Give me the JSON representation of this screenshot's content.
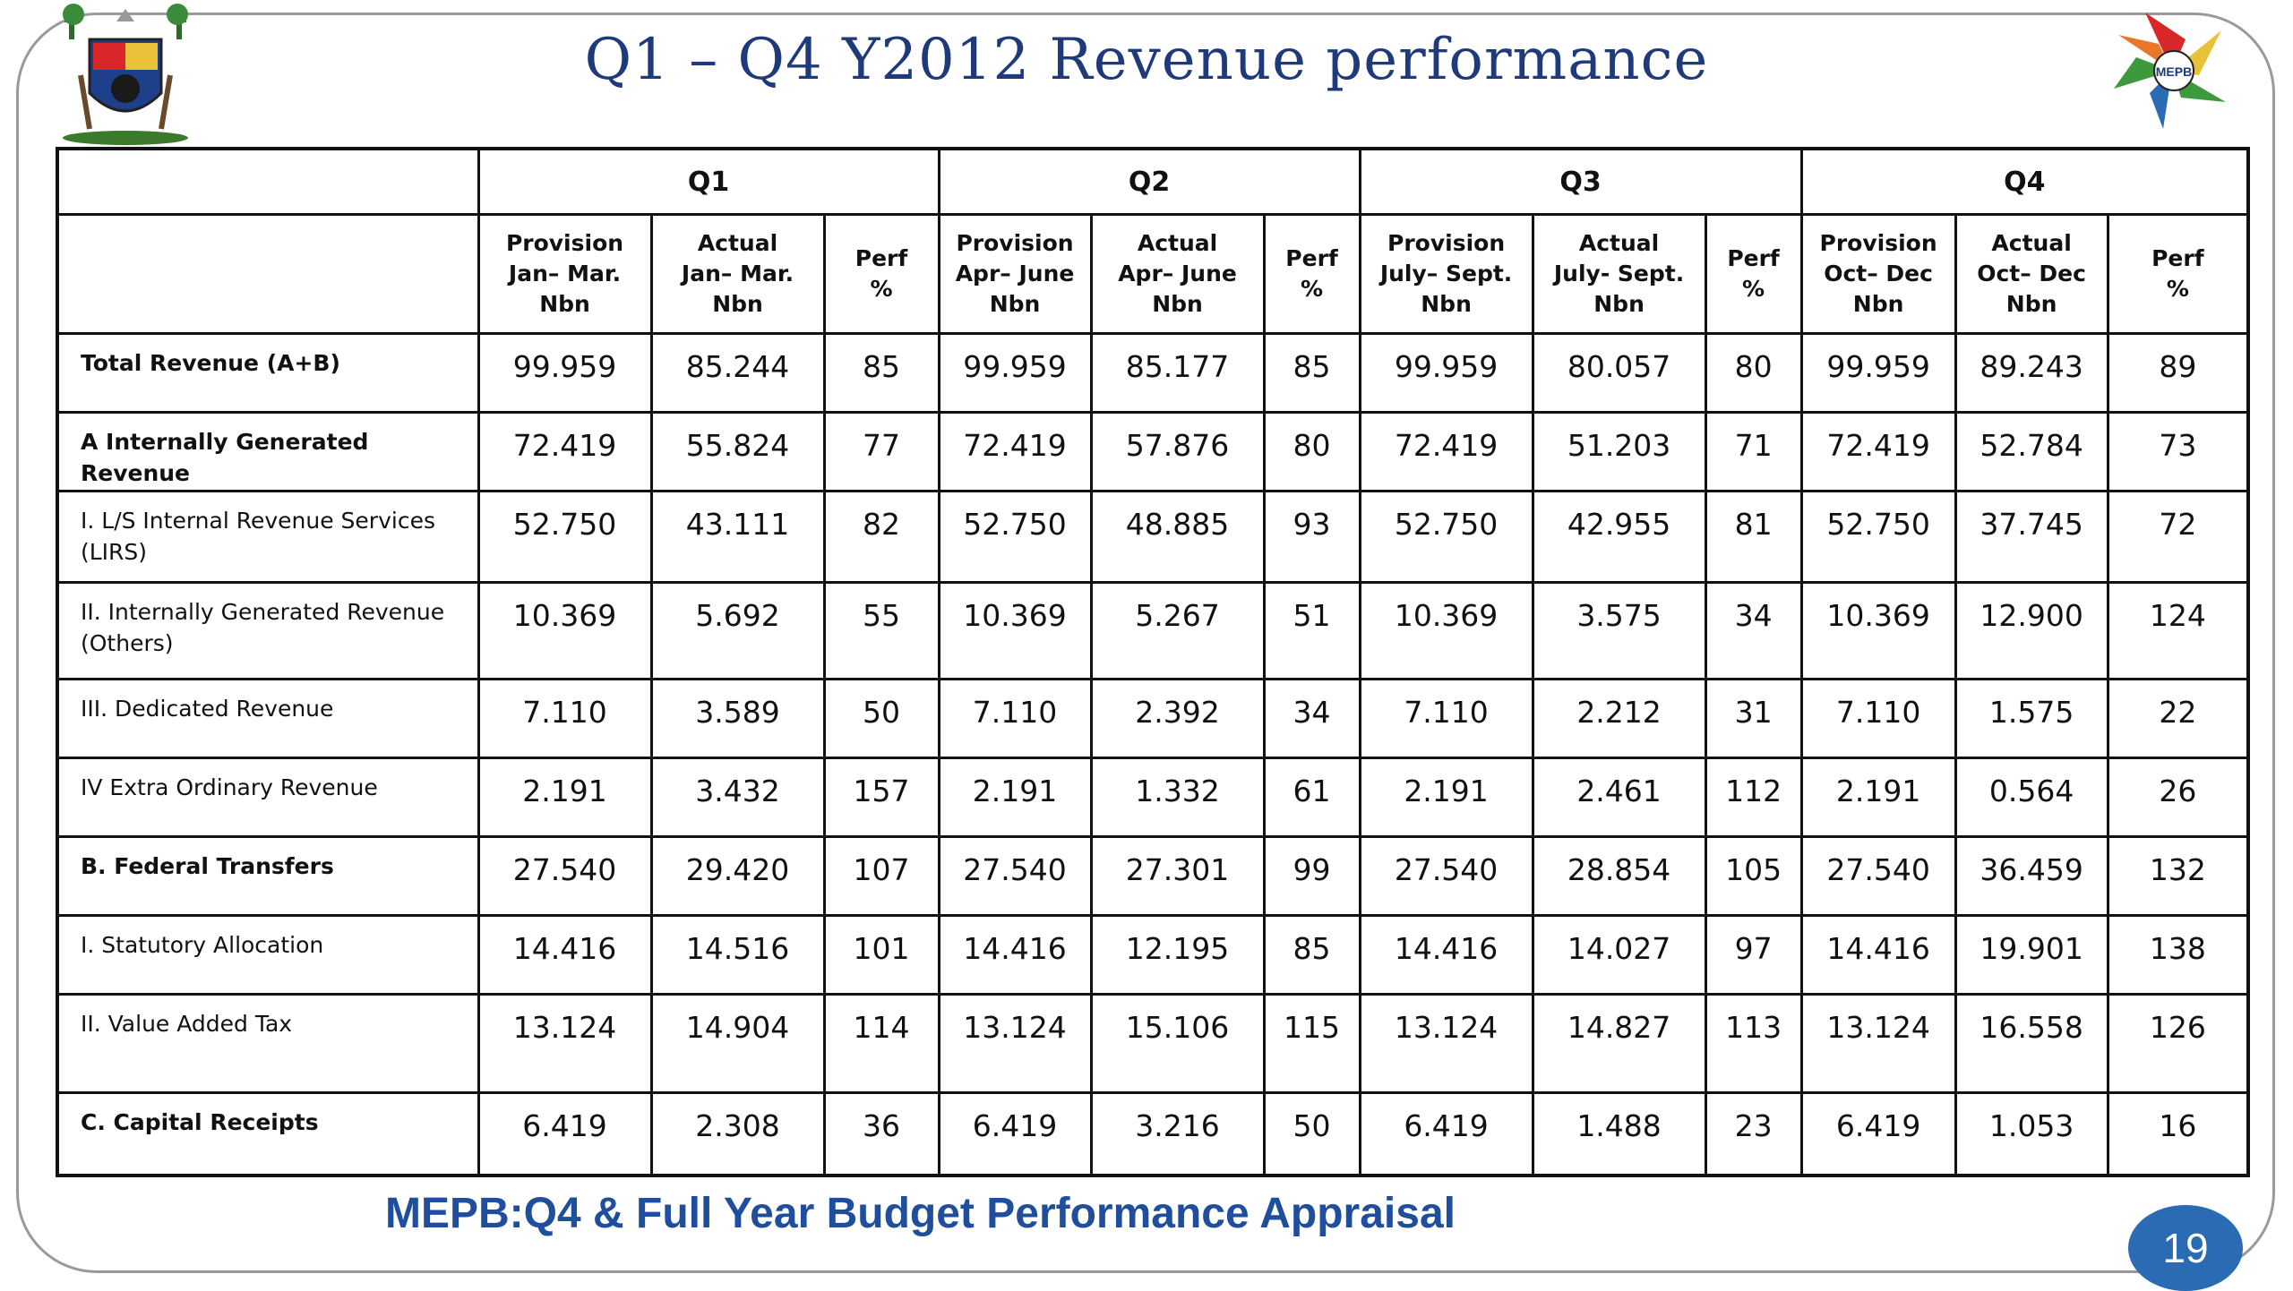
{
  "slide": {
    "title": "Q1 – Q4 Y2012 Revenue performance",
    "footer": "MEPB:Q4 & Full Year  Budget Performance Appraisal",
    "page_number": "19",
    "logo_left": "lagos-state-coat-of-arms-icon",
    "logo_right": "mepb-logo-icon",
    "colors": {
      "title": "#1f3a7a",
      "footer": "#1f4e9c",
      "badge": "#2a6bb3"
    }
  },
  "table": {
    "quarters": [
      "Q1",
      "Q2",
      "Q3",
      "Q4"
    ],
    "col_headers": [
      [
        "Provision",
        "Jan– Mar.",
        "Nbn"
      ],
      [
        "Actual",
        "Jan– Mar.",
        "Nbn"
      ],
      [
        "Perf",
        "%"
      ],
      [
        "Provision",
        "Apr– June",
        "Nbn"
      ],
      [
        "Actual",
        "Apr– June",
        "Nbn"
      ],
      [
        "Perf",
        "%"
      ],
      [
        "Provision",
        "July– Sept.",
        "Nbn"
      ],
      [
        "Actual",
        "July- Sept.",
        "Nbn"
      ],
      [
        "Perf",
        "%"
      ],
      [
        "Provision",
        "Oct– Dec",
        "Nbn"
      ],
      [
        "Actual",
        "Oct– Dec",
        "Nbn"
      ],
      [
        "Perf",
        "%"
      ]
    ],
    "rows": [
      {
        "label": "Total Revenue (A+B)",
        "bold": true,
        "values": [
          "99.959",
          "85.244",
          "85",
          "99.959",
          "85.177",
          "85",
          "99.959",
          "80.057",
          "80",
          "99.959",
          "89.243",
          "89"
        ]
      },
      {
        "label": "A Internally Generated Revenue",
        "bold": true,
        "values": [
          "72.419",
          "55.824",
          "77",
          "72.419",
          "57.876",
          "80",
          "72.419",
          "51.203",
          "71",
          "72.419",
          "52.784",
          "73"
        ]
      },
      {
        "label": "I. L/S Internal   Revenue Services (LIRS)",
        "bold": false,
        "values": [
          "52.750",
          "43.111",
          "82",
          "52.750",
          "48.885",
          "93",
          "52.750",
          "42.955",
          "81",
          "52.750",
          "37.745",
          "72"
        ]
      },
      {
        "label": "II. Internally   Generated Revenue (Others)",
        "bold": false,
        "values": [
          "10.369",
          "5.692",
          "55",
          "10.369",
          "5.267",
          "51",
          "10.369",
          "3.575",
          "34",
          "10.369",
          "12.900",
          "124"
        ]
      },
      {
        "label": "III. Dedicated Revenue",
        "bold": false,
        "values": [
          "7.110",
          "3.589",
          "50",
          "7.110",
          "2.392",
          "34",
          "7.110",
          "2.212",
          "31",
          "7.110",
          "1.575",
          "22"
        ]
      },
      {
        "label": "IV Extra Ordinary Revenue",
        "bold": false,
        "values": [
          "2.191",
          "3.432",
          "157",
          "2.191",
          "1.332",
          "61",
          "2.191",
          "2.461",
          "112",
          "2.191",
          "0.564",
          "26"
        ]
      },
      {
        "label": "B.   Federal Transfers",
        "bold": true,
        "values": [
          "27.540",
          "29.420",
          "107",
          "27.540",
          "27.301",
          "99",
          "27.540",
          "28.854",
          "105",
          "27.540",
          "36.459",
          "132"
        ]
      },
      {
        "label": "I.  Statutory Allocation",
        "bold": false,
        "values": [
          "14.416",
          "14.516",
          "101",
          "14.416",
          "12.195",
          "85",
          "14.416",
          "14.027",
          "97",
          "14.416",
          "19.901",
          "138"
        ]
      },
      {
        "label": "II. Value Added Tax",
        "bold": false,
        "values": [
          "13.124",
          "14.904",
          "114",
          "13.124",
          "15.106",
          "115",
          "13.124",
          "14.827",
          "113",
          "13.124",
          "16.558",
          "126"
        ]
      },
      {
        "label": "C.  Capital Receipts",
        "bold": true,
        "values": [
          "6.419",
          "2.308",
          "36",
          "6.419",
          "3.216",
          "50",
          "6.419",
          "1.488",
          "23",
          "6.419",
          "1.053",
          "16"
        ]
      }
    ]
  }
}
